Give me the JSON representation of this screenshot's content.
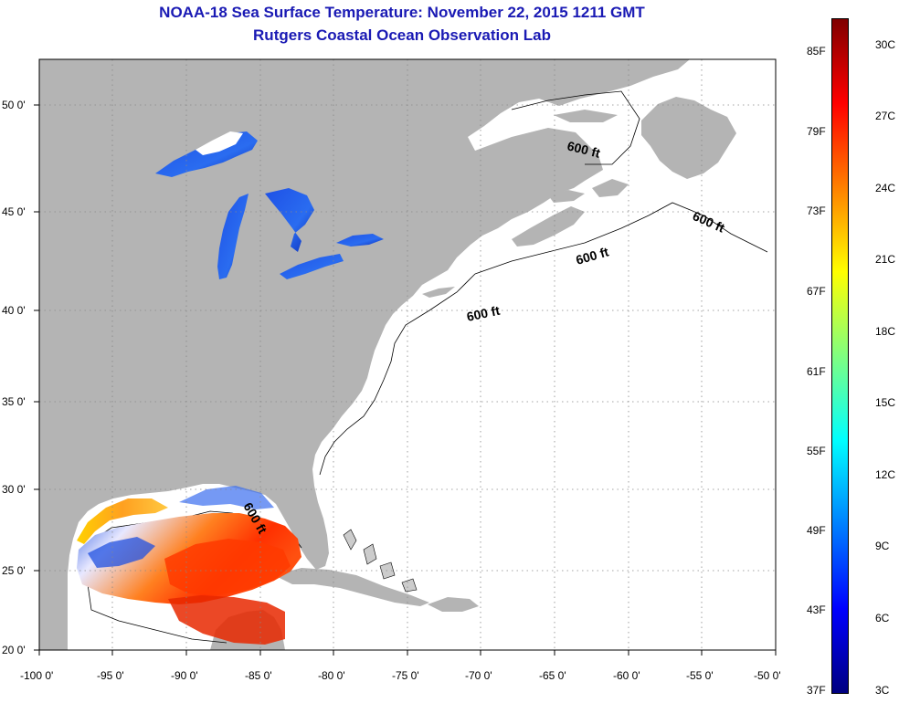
{
  "title": {
    "line1": "NOAA-18 Sea Surface Temperature:  November 22, 2015 1211 GMT",
    "line2": "Rutgers Coastal Ocean Observation Lab"
  },
  "map": {
    "lat_labels": [
      "50 0'",
      "45 0'",
      "40 0'",
      "35 0'",
      "30 0'",
      "25 0'",
      "20 0'"
    ],
    "lon_labels": [
      "-100 0'",
      "-95 0'",
      "-90 0'",
      "-85 0'",
      "-80 0'",
      "-75 0'",
      "-70 0'",
      "-65 0'",
      "-60 0'",
      "-55 0'",
      "-50 0'"
    ],
    "depth_labels": [
      "600 ft",
      "600 ft",
      "600 ft",
      "600 ft",
      "600 ft"
    ],
    "colors": {
      "land": "#b4b4b4",
      "ocean": "#ffffff",
      "grid": "#888888"
    }
  },
  "colorbar": {
    "fahrenheit_labels": [
      "85F",
      "79F",
      "73F",
      "67F",
      "61F",
      "55F",
      "49F",
      "43F",
      "37F"
    ],
    "celsius_labels": [
      "30C",
      "27C",
      "24C",
      "21C",
      "18C",
      "15C",
      "12C",
      "9C",
      "6C",
      "3C"
    ],
    "colors": [
      "#800000",
      "#ff0000",
      "#ff8000",
      "#ffff00",
      "#80ff80",
      "#00ffff",
      "#0080ff",
      "#0000ff",
      "#000080"
    ]
  }
}
